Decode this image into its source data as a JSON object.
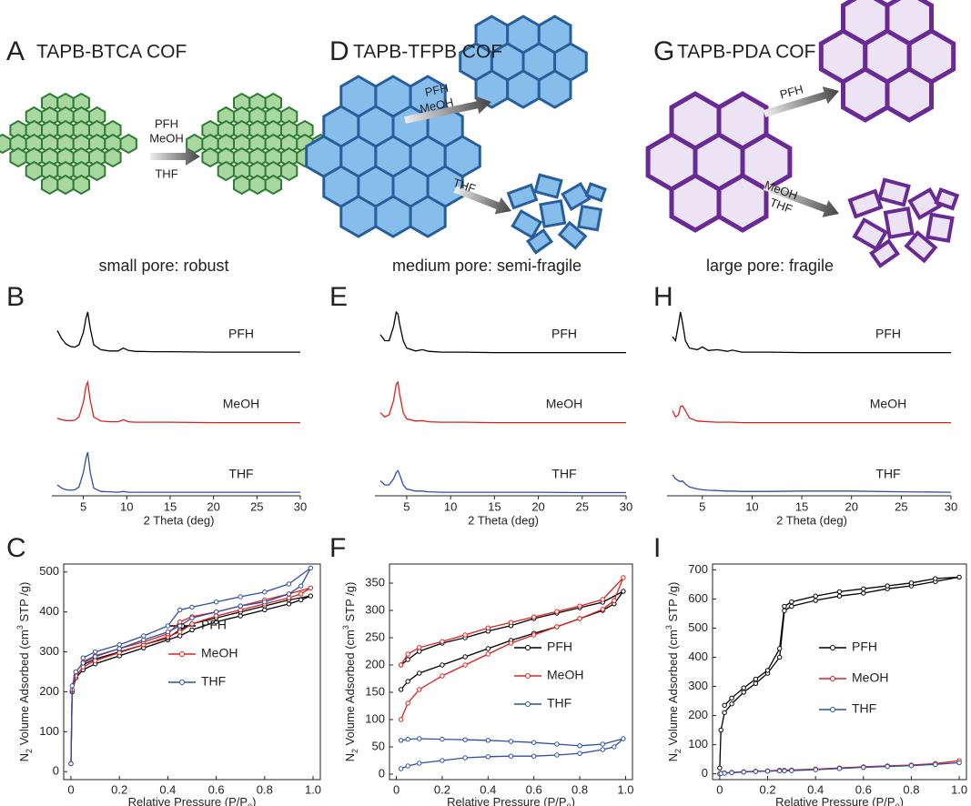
{
  "diagrams": [
    {
      "panel_label": "A",
      "title": "TAPB-BTCA COF",
      "caption": "small pore: robust",
      "arrows": [
        {
          "above": [
            "PFH",
            "MeOH"
          ],
          "below": [
            "THF"
          ]
        }
      ]
    },
    {
      "panel_label": "D",
      "title": "TAPB-TFPB COF",
      "caption": "medium pore: semi-fragile",
      "arrows": [
        {
          "above": [
            "PFH",
            "MeOH"
          ]
        },
        {
          "above": [
            "THF"
          ]
        }
      ]
    },
    {
      "panel_label": "G",
      "title": "TAPB-PDA COF",
      "caption": "large pore: fragile",
      "arrows": [
        {
          "above": [
            "PFH"
          ]
        },
        {
          "above": [
            "MeOH",
            "THF"
          ]
        }
      ]
    }
  ],
  "chart_data": [
    {
      "panel_label": "B",
      "type": "line",
      "xlabel": "2 Theta (deg)",
      "x": [
        2,
        2.5,
        3,
        3.5,
        4,
        4.5,
        5,
        5.3,
        5.5,
        5.8,
        6.2,
        7,
        8,
        9,
        9.6,
        10.2,
        11,
        13,
        15,
        20,
        25,
        30
      ],
      "xlim": [
        2,
        30
      ],
      "xticks": [
        5,
        10,
        15,
        20,
        25,
        30
      ],
      "series": [
        {
          "name": "PFH",
          "color": "#000000",
          "values": [
            0.55,
            0.35,
            0.22,
            0.16,
            0.14,
            0.2,
            0.5,
            0.85,
            1.0,
            0.6,
            0.2,
            0.08,
            0.05,
            0.05,
            0.12,
            0.06,
            0.04,
            0.03,
            0.03,
            0.02,
            0.02,
            0.02
          ]
        },
        {
          "name": "MeOH",
          "color": "#e0201b",
          "values": [
            0.12,
            0.08,
            0.06,
            0.06,
            0.07,
            0.15,
            0.5,
            0.9,
            1.0,
            0.55,
            0.15,
            0.05,
            0.03,
            0.03,
            0.08,
            0.03,
            0.02,
            0.02,
            0.02,
            0.01,
            0.01,
            0.01
          ]
        },
        {
          "name": "THF",
          "color": "#2d4fa8",
          "values": [
            0.2,
            0.12,
            0.08,
            0.07,
            0.08,
            0.15,
            0.5,
            0.85,
            1.0,
            0.5,
            0.12,
            0.04,
            0.03,
            0.02,
            0.04,
            0.02,
            0.02,
            0.02,
            0.02,
            0.02,
            0.02,
            0.02
          ]
        }
      ]
    },
    {
      "panel_label": "C",
      "type": "line",
      "markers": true,
      "ylabel": [
        "N",
        "2",
        " Volume Adsorbed (cm",
        "3",
        " STP /g)"
      ],
      "xlabel": [
        "Relative Pressure (P/P",
        "0",
        ")"
      ],
      "x": [
        0,
        0.005,
        0.02,
        0.05,
        0.1,
        0.2,
        0.3,
        0.4,
        0.45,
        0.5,
        0.6,
        0.7,
        0.8,
        0.9,
        0.95,
        0.99,
        0.9,
        0.8,
        0.7,
        0.6,
        0.5,
        0.45,
        0.4,
        0.3,
        0.2,
        0.1,
        0.05
      ],
      "xlim": [
        -0.03,
        1.03
      ],
      "xticks": [
        0,
        0.2,
        0.4,
        0.6,
        0.8,
        {
          "value": 1,
          "label": "1.0"
        }
      ],
      "ylim": [
        -20,
        520
      ],
      "yticks": [
        0,
        100,
        200,
        300,
        400,
        500
      ],
      "series": [
        {
          "name": "PFH",
          "color": "#000000",
          "values": [
            20,
            200,
            235,
            255,
            270,
            290,
            310,
            330,
            340,
            355,
            375,
            390,
            405,
            420,
            430,
            440,
            430,
            415,
            400,
            385,
            370,
            355,
            335,
            318,
            300,
            282,
            268
          ]
        },
        {
          "name": "MeOH",
          "color": "#e0201b",
          "values": [
            20,
            205,
            240,
            262,
            278,
            298,
            318,
            338,
            350,
            370,
            390,
            405,
            420,
            435,
            445,
            460,
            445,
            430,
            415,
            400,
            388,
            375,
            345,
            325,
            308,
            290,
            275
          ]
        },
        {
          "name": "THF",
          "color": "#2d4fa8",
          "values": [
            20,
            215,
            250,
            272,
            288,
            308,
            330,
            350,
            365,
            385,
            400,
            415,
            425,
            445,
            465,
            510,
            470,
            450,
            438,
            425,
            412,
            405,
            365,
            340,
            318,
            300,
            285
          ]
        }
      ]
    },
    {
      "panel_label": "E",
      "type": "line",
      "xlabel": "2 Theta (deg)",
      "x": [
        2,
        2.5,
        3,
        3.5,
        3.8,
        4,
        4.2,
        4.6,
        5,
        6,
        6.8,
        7.5,
        9,
        11,
        15,
        20,
        25,
        30
      ],
      "xlim": [
        2,
        30
      ],
      "xticks": [
        5,
        10,
        15,
        20,
        25,
        30
      ],
      "series": [
        {
          "name": "PFH",
          "color": "#000000",
          "values": [
            0.45,
            0.3,
            0.3,
            0.65,
            1.0,
            0.95,
            0.7,
            0.3,
            0.12,
            0.05,
            0.08,
            0.04,
            0.02,
            0.02,
            0.01,
            0.01,
            0.01,
            0.01
          ]
        },
        {
          "name": "MeOH",
          "color": "#e0201b",
          "values": [
            0.25,
            0.15,
            0.2,
            0.55,
            0.95,
            1.0,
            0.7,
            0.25,
            0.1,
            0.05,
            0.06,
            0.03,
            0.02,
            0.02,
            0.01,
            0.01,
            0.01,
            0.01
          ]
        },
        {
          "name": "THF",
          "color": "#2d4fa8",
          "values": [
            0.3,
            0.2,
            0.2,
            0.35,
            0.5,
            0.55,
            0.45,
            0.2,
            0.1,
            0.05,
            0.05,
            0.03,
            0.02,
            0.02,
            0.02,
            0.02,
            0.01,
            0.01
          ]
        }
      ]
    },
    {
      "panel_label": "F",
      "type": "line",
      "markers": true,
      "ylabel": [
        "N",
        "2",
        " Volume Adsorbed (cm",
        "3",
        " STP /g)"
      ],
      "xlabel": [
        "Relative Pressure (P/P",
        "0",
        ")"
      ],
      "x": [
        0.02,
        0.05,
        0.1,
        0.2,
        0.3,
        0.4,
        0.5,
        0.6,
        0.7,
        0.8,
        0.9,
        0.95,
        0.99,
        0.9,
        0.8,
        0.7,
        0.6,
        0.5,
        0.4,
        0.3,
        0.2,
        0.1,
        0.05,
        0.02
      ],
      "xlim": [
        -0.03,
        1.03
      ],
      "xticks": [
        0,
        0.2,
        0.4,
        0.6,
        0.8,
        {
          "value": 1,
          "label": "1.0"
        }
      ],
      "ylim": [
        -10,
        385
      ],
      "yticks": [
        0,
        50,
        100,
        150,
        200,
        250,
        300,
        350
      ],
      "series": [
        {
          "name": "PFH",
          "color": "#000000",
          "values": [
            155,
            170,
            185,
            200,
            215,
            230,
            245,
            258,
            270,
            285,
            300,
            312,
            335,
            315,
            305,
            295,
            285,
            272,
            262,
            250,
            240,
            225,
            210,
            200
          ]
        },
        {
          "name": "MeOH",
          "color": "#e0201b",
          "values": [
            100,
            130,
            155,
            180,
            200,
            220,
            240,
            255,
            270,
            285,
            302,
            318,
            360,
            320,
            308,
            298,
            288,
            278,
            268,
            255,
            243,
            232,
            220,
            200
          ]
        },
        {
          "name": "THF",
          "color": "#2d4fa8",
          "values": [
            10,
            15,
            20,
            25,
            30,
            32,
            33,
            33,
            35,
            38,
            45,
            50,
            65,
            55,
            52,
            55,
            58,
            60,
            62,
            63,
            64,
            65,
            64,
            62
          ]
        }
      ]
    },
    {
      "panel_label": "H",
      "type": "line",
      "xlabel": "2 Theta (deg)",
      "x": [
        2,
        2.3,
        2.6,
        2.8,
        3,
        3.3,
        3.7,
        4.5,
        5,
        5.6,
        6.5,
        7.5,
        8,
        9,
        12,
        15,
        20,
        25,
        30
      ],
      "xlim": [
        2,
        30
      ],
      "xticks": [
        5,
        10,
        15,
        20,
        25,
        30
      ],
      "series": [
        {
          "name": "PFH",
          "color": "#000000",
          "values": [
            0.4,
            0.3,
            0.7,
            1.0,
            0.75,
            0.3,
            0.12,
            0.08,
            0.15,
            0.06,
            0.08,
            0.04,
            0.07,
            0.02,
            0.02,
            0.01,
            0.01,
            0.01,
            0.01
          ]
        },
        {
          "name": "MeOH",
          "color": "#e0201b",
          "values": [
            0.3,
            0.15,
            0.2,
            0.4,
            0.42,
            0.3,
            0.12,
            0.05,
            0.04,
            0.03,
            0.02,
            0.02,
            0.02,
            0.01,
            0.01,
            0.01,
            0.01,
            0.01,
            0.01
          ]
        },
        {
          "name": "THF",
          "color": "#2d4fa8",
          "values": [
            0.45,
            0.35,
            0.3,
            0.28,
            0.3,
            0.22,
            0.15,
            0.1,
            0.08,
            0.07,
            0.06,
            0.05,
            0.05,
            0.04,
            0.04,
            0.05,
            0.05,
            0.03,
            0.02
          ]
        }
      ]
    },
    {
      "panel_label": "I",
      "type": "line",
      "markers": true,
      "ylabel": [
        "N",
        "2",
        " Volume Adsorbed (cm",
        "3",
        " STP /g)"
      ],
      "xlabel": [
        "Relative Pressure (P/P",
        "0",
        ")"
      ],
      "x": [
        0,
        0.005,
        0.02,
        0.05,
        0.1,
        0.15,
        0.2,
        0.25,
        0.27,
        0.3,
        0.4,
        0.5,
        0.6,
        0.7,
        0.8,
        0.9,
        1.0,
        0.9,
        0.8,
        0.7,
        0.6,
        0.5,
        0.4,
        0.3,
        0.27,
        0.25,
        0.2,
        0.15,
        0.1,
        0.05,
        0.02
      ],
      "xlim": [
        -0.03,
        1.03
      ],
      "xticks": [
        0,
        0.2,
        0.4,
        0.6,
        0.8,
        {
          "value": 1,
          "label": "1.0"
        }
      ],
      "ylim": [
        -20,
        720
      ],
      "yticks": [
        0,
        100,
        200,
        300,
        400,
        500,
        600,
        700
      ],
      "series": [
        {
          "name": "PFH",
          "color": "#000000",
          "values": [
            20,
            150,
            210,
            240,
            280,
            310,
            345,
            400,
            560,
            575,
            595,
            610,
            620,
            635,
            645,
            660,
            675,
            670,
            655,
            645,
            635,
            625,
            610,
            590,
            575,
            430,
            355,
            325,
            295,
            260,
            235
          ]
        },
        {
          "name": "MeOH",
          "color": "#e0201b",
          "values": [
            0,
            2,
            3,
            5,
            7,
            9,
            10,
            12,
            12,
            13,
            16,
            20,
            24,
            27,
            30,
            35,
            45,
            35,
            30,
            27,
            24,
            20,
            16,
            13,
            12,
            12,
            10,
            9,
            7,
            5,
            3
          ]
        },
        {
          "name": "THF",
          "color": "#2d4fa8",
          "values": [
            0,
            1,
            2,
            4,
            6,
            8,
            9,
            10,
            10,
            11,
            14,
            18,
            22,
            25,
            28,
            32,
            38,
            32,
            28,
            25,
            22,
            18,
            14,
            11,
            10,
            10,
            9,
            8,
            6,
            4,
            2
          ]
        }
      ]
    }
  ]
}
